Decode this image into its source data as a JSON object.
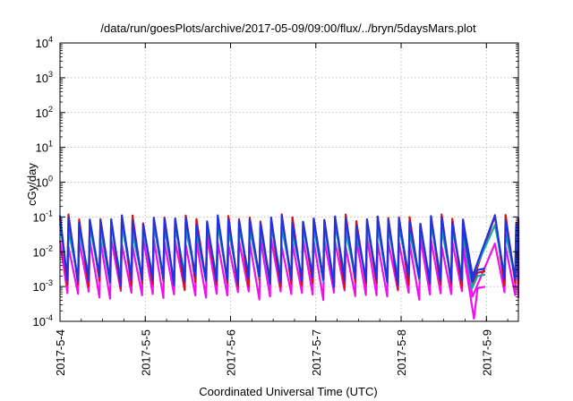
{
  "chart_data": {
    "type": "line",
    "title": "/data/run/goesPlots/archive/2017-05-09/09:00/flux/../bryn/5daysMars.plot",
    "xlabel": "Coordinated Universal Time (UTC)",
    "ylabel": "cGy/day",
    "y_scale": "log",
    "ylim": [
      0.0001,
      10000
    ],
    "y_ticks": [
      {
        "value": 0.0001,
        "base": "10",
        "exp": "-4"
      },
      {
        "value": 0.001,
        "base": "10",
        "exp": "-3"
      },
      {
        "value": 0.01,
        "base": "10",
        "exp": "-2"
      },
      {
        "value": 0.1,
        "base": "10",
        "exp": "-1"
      },
      {
        "value": 1,
        "base": "10",
        "exp": "0"
      },
      {
        "value": 10,
        "base": "10",
        "exp": "1"
      },
      {
        "value": 100,
        "base": "10",
        "exp": "2"
      },
      {
        "value": 1000,
        "base": "10",
        "exp": "3"
      },
      {
        "value": 10000,
        "base": "10",
        "exp": "4"
      }
    ],
    "xlim": [
      "2017-05-04T00:00",
      "2017-05-09T09:00"
    ],
    "x_ticks": [
      {
        "value": "2017-05-04T00:00",
        "label": "2017-5-4"
      },
      {
        "value": "2017-05-05T00:00",
        "label": "2017-5-5"
      },
      {
        "value": "2017-05-06T00:00",
        "label": "2017-5-6"
      },
      {
        "value": "2017-05-07T00:00",
        "label": "2017-5-7"
      },
      {
        "value": "2017-05-08T00:00",
        "label": "2017-5-8"
      },
      {
        "value": "2017-05-09T00:00",
        "label": "2017-5-9"
      }
    ],
    "grid": true,
    "legend": "none",
    "series": [
      {
        "color": "#dd1111",
        "peak": 0.09,
        "trough": 0.0012,
        "dip": {
          "time": "2017-05-08T20:00",
          "value": 0.0012
        },
        "gap_trough": 0.0025
      },
      {
        "color": "#2233dd",
        "peak": 0.085,
        "trough": 0.0015,
        "dip": {
          "time": "2017-05-08T20:00",
          "value": 0.0014
        },
        "gap_trough": 0.003
      },
      {
        "color": "#11aaaa",
        "peak": 0.05,
        "trough": 0.0018,
        "dip": {
          "time": "2017-05-08T20:00",
          "value": 0.0009
        },
        "gap_trough": 0.002
      },
      {
        "color": "#ee11ee",
        "peak": 0.02,
        "trough": 0.0006,
        "dip": {
          "time": "2017-05-08T20:30",
          "value": 0.00012
        },
        "gap_trough": 0.0009
      }
    ],
    "pattern": {
      "period_hours": 3,
      "gap": {
        "start": "2017-05-08T21:00",
        "end": "2017-05-09T00:00"
      }
    }
  }
}
